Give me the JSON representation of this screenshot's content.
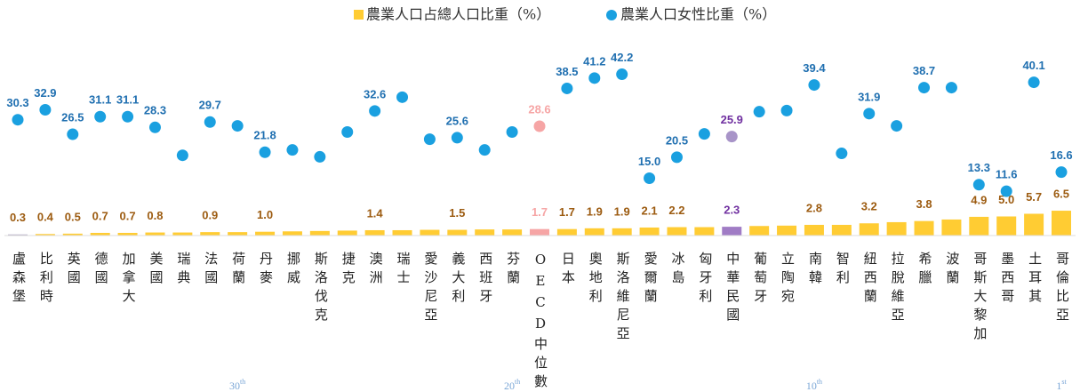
{
  "chart_data": {
    "type": "bar_dot",
    "categories": [
      "盧森堡",
      "比利時",
      "英國",
      "德國",
      "加拿大",
      "美國",
      "瑞典",
      "法國",
      "荷蘭",
      "丹麥",
      "挪威",
      "斯洛伐克",
      "捷克",
      "澳洲",
      "瑞士",
      "愛沙尼亞",
      "義大利",
      "西班牙",
      "芬蘭",
      "OECD中位數",
      "日本",
      "奧地利",
      "斯洛維尼亞",
      "愛爾蘭",
      "冰島",
      "匈牙利",
      "中華民國",
      "葡萄牙",
      "立陶宛",
      "南韓",
      "智利",
      "紐西蘭",
      "拉脫維亞",
      "希臘",
      "波蘭",
      "哥斯大黎加",
      "墨西哥",
      "土耳其",
      "哥倫比亞"
    ],
    "series": [
      {
        "name": "農業人口占總人口比重（%）",
        "mark": "bar",
        "color": "#ffcc33",
        "label_color": "#9c5b10",
        "values": [
          0.3,
          0.4,
          0.5,
          0.7,
          0.7,
          0.8,
          0.8,
          0.9,
          0.9,
          1.0,
          1.1,
          1.2,
          1.3,
          1.4,
          1.4,
          1.5,
          1.5,
          1.6,
          1.6,
          1.7,
          1.7,
          1.9,
          1.9,
          2.1,
          2.2,
          2.2,
          2.3,
          2.5,
          2.6,
          2.8,
          2.8,
          3.2,
          3.5,
          3.8,
          4.2,
          4.9,
          5.0,
          5.7,
          6.5
        ],
        "value_labels": [
          "0.3",
          "0.4",
          "0.5",
          "0.7",
          "0.7",
          "0.8",
          null,
          "0.9",
          null,
          "1.0",
          null,
          null,
          null,
          "1.4",
          null,
          null,
          "1.5",
          null,
          null,
          "1.7",
          "1.7",
          "1.9",
          "1.9",
          "2.1",
          "2.2",
          null,
          "2.3",
          null,
          null,
          "2.8",
          null,
          "3.2",
          null,
          "3.8",
          null,
          "4.9",
          "5.0",
          "5.7",
          "6.5"
        ]
      },
      {
        "name": "農業人口女性比重（%）",
        "mark": "dot",
        "color": "#1aa0e0",
        "label_color": "#1f6fb0",
        "values": [
          30.3,
          32.9,
          26.5,
          31.1,
          31.1,
          28.3,
          21.0,
          29.7,
          28.7,
          21.8,
          22.4,
          20.6,
          27.1,
          32.6,
          36.2,
          25.2,
          25.6,
          22.4,
          27.1,
          28.6,
          38.5,
          41.2,
          42.2,
          15.0,
          20.5,
          26.6,
          25.9,
          32.4,
          32.7,
          39.4,
          21.5,
          31.9,
          28.7,
          38.7,
          38.7,
          13.3,
          11.6,
          40.1,
          16.6
        ],
        "value_labels": [
          "30.3",
          "32.9",
          "26.5",
          "31.1",
          "31.1",
          "28.3",
          null,
          "29.7",
          null,
          "21.8",
          null,
          null,
          null,
          "32.6",
          null,
          null,
          "25.6",
          null,
          null,
          "28.6",
          "38.5",
          "41.2",
          "42.2",
          "15.0",
          "20.5",
          null,
          "25.9",
          null,
          null,
          "39.4",
          null,
          "31.9",
          null,
          "38.7",
          null,
          "13.3",
          "11.6",
          "40.1",
          "16.6"
        ]
      }
    ],
    "highlights": [
      {
        "index": 0,
        "bar_color": "#b8b0c8"
      },
      {
        "index": 19,
        "bar_color": "#f6a5a5",
        "dot_color": "#f6a5a5",
        "label_color": "#f6a5a5"
      },
      {
        "index": 26,
        "bar_color": "#a07cc5",
        "dot_color": "#a894c8",
        "label_color": "#7030a0"
      }
    ],
    "rank_markers": [
      {
        "label": "30",
        "suffix": "th"
      },
      {
        "label": "20",
        "suffix": "th"
      },
      {
        "label": "10",
        "suffix": "th"
      },
      {
        "label": "1",
        "suffix": "st"
      }
    ]
  }
}
